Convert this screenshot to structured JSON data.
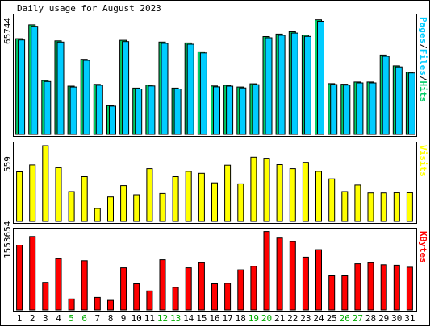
{
  "chart_data": {
    "type": "bar",
    "title": "Daily usage for August 2023",
    "categories": [
      "1",
      "2",
      "3",
      "4",
      "5",
      "6",
      "7",
      "8",
      "9",
      "10",
      "11",
      "12",
      "13",
      "14",
      "15",
      "16",
      "17",
      "18",
      "19",
      "20",
      "21",
      "22",
      "23",
      "24",
      "25",
      "26",
      "27",
      "28",
      "29",
      "30",
      "31"
    ],
    "weekend_days": [
      "5",
      "6",
      "12",
      "13",
      "19",
      "20",
      "26",
      "27"
    ],
    "panels": [
      {
        "name": "usage",
        "ymax_label": "65744",
        "ymax": 65744,
        "side_label": [
          "Pages",
          "/",
          "Files",
          "/",
          "Hits"
        ],
        "side_label_colors": [
          "#00ccff",
          "#000000",
          "#00ccff",
          "#000000",
          "#00cc66"
        ],
        "series": [
          {
            "name": "Hits",
            "color": "#00cc66",
            "values": [
              53900,
              61700,
              30400,
              52700,
              27200,
              42300,
              28200,
              16200,
              53000,
              26100,
              27800,
              52000,
              26100,
              51500,
              46500,
              27300,
              27700,
              26700,
              28500,
              55100,
              56500,
              57800,
              55900,
              64500,
              28600,
              28300,
              29500,
              29500,
              44700,
              38600,
              35100
            ]
          },
          {
            "name": "Files",
            "color": "#00ccff",
            "values": [
              53200,
              60900,
              29800,
              52000,
              26700,
              41700,
              27700,
              15900,
              52300,
              25600,
              27300,
              51300,
              25600,
              50800,
              45900,
              26800,
              27200,
              26200,
              28000,
              54400,
              55800,
              57100,
              55200,
              63700,
              28100,
              27800,
              29000,
              29000,
              44000,
              38000,
              34600
            ]
          },
          {
            "name": "Pages",
            "color": "#0000ff",
            "values": [
              0,
              0,
              0,
              0,
              0,
              0,
              0,
              0,
              0,
              0,
              0,
              0,
              0,
              0,
              0,
              0,
              0,
              0,
              0,
              0,
              0,
              0,
              0,
              0,
              0,
              0,
              0,
              0,
              0,
              0,
              0
            ]
          }
        ]
      },
      {
        "name": "visits",
        "ymax_label": "559",
        "ymax": 559,
        "side_label": [
          "Visits"
        ],
        "side_label_colors": [
          "#ffff00"
        ],
        "series": [
          {
            "name": "Visits",
            "color": "#ffff00",
            "values": [
              366,
              417,
              559,
              396,
              220,
              330,
              95,
              180,
              264,
              196,
              389,
              206,
              330,
              369,
              355,
              284,
              415,
              277,
              474,
              466,
              419,
              389,
              436,
              369,
              314,
              220,
              268,
              210,
              210,
              212,
              212
            ]
          }
        ]
      },
      {
        "name": "kbytes",
        "ymax_label": "1553654",
        "ymax": 1553654,
        "side_label": [
          "KBytes"
        ],
        "side_label_colors": [
          "#ff0000"
        ],
        "series": [
          {
            "name": "KBytes",
            "color": "#ff0000",
            "values": [
              1290000,
              1460000,
              550000,
              1020000,
              220000,
              980000,
              250000,
              190000,
              840000,
              520000,
              380000,
              1000000,
              450000,
              840000,
              940000,
              520000,
              530000,
              800000,
              870000,
              1560000,
              1430000,
              1360000,
              1050000,
              1200000,
              680000,
              680000,
              920000,
              940000,
              900000,
              890000,
              850000
            ]
          }
        ]
      }
    ]
  }
}
